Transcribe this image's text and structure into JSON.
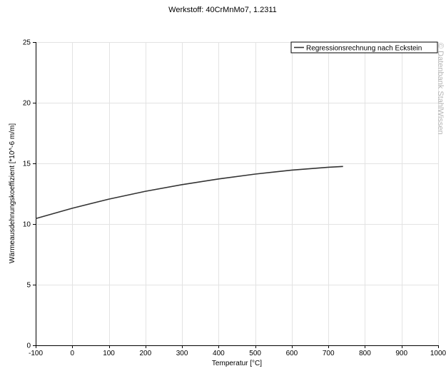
{
  "chart_data": {
    "type": "line",
    "title": "Werkstoff: 40CrMnMo7, 1.2311",
    "xlabel": "Temperatur [°C]",
    "ylabel": "Wärmeausdehnungskoeffizient [*10^-6 m/m]",
    "xlim": [
      -100,
      1000
    ],
    "ylim": [
      0,
      25
    ],
    "x_ticks": [
      -100,
      0,
      100,
      200,
      300,
      400,
      500,
      600,
      700,
      800,
      900,
      1000
    ],
    "y_ticks": [
      0,
      5,
      10,
      15,
      20,
      25
    ],
    "grid": true,
    "legend_position": "top-right",
    "series": [
      {
        "name": "Regressionsrechnung nach Eckstein",
        "color": "#333333",
        "x": [
          -100,
          0,
          100,
          200,
          300,
          400,
          500,
          600,
          700,
          740
        ],
        "y": [
          10.45,
          11.3,
          12.05,
          12.7,
          13.25,
          13.72,
          14.12,
          14.45,
          14.68,
          14.75
        ]
      }
    ]
  },
  "watermark": "© Datenbank StahlWissen"
}
